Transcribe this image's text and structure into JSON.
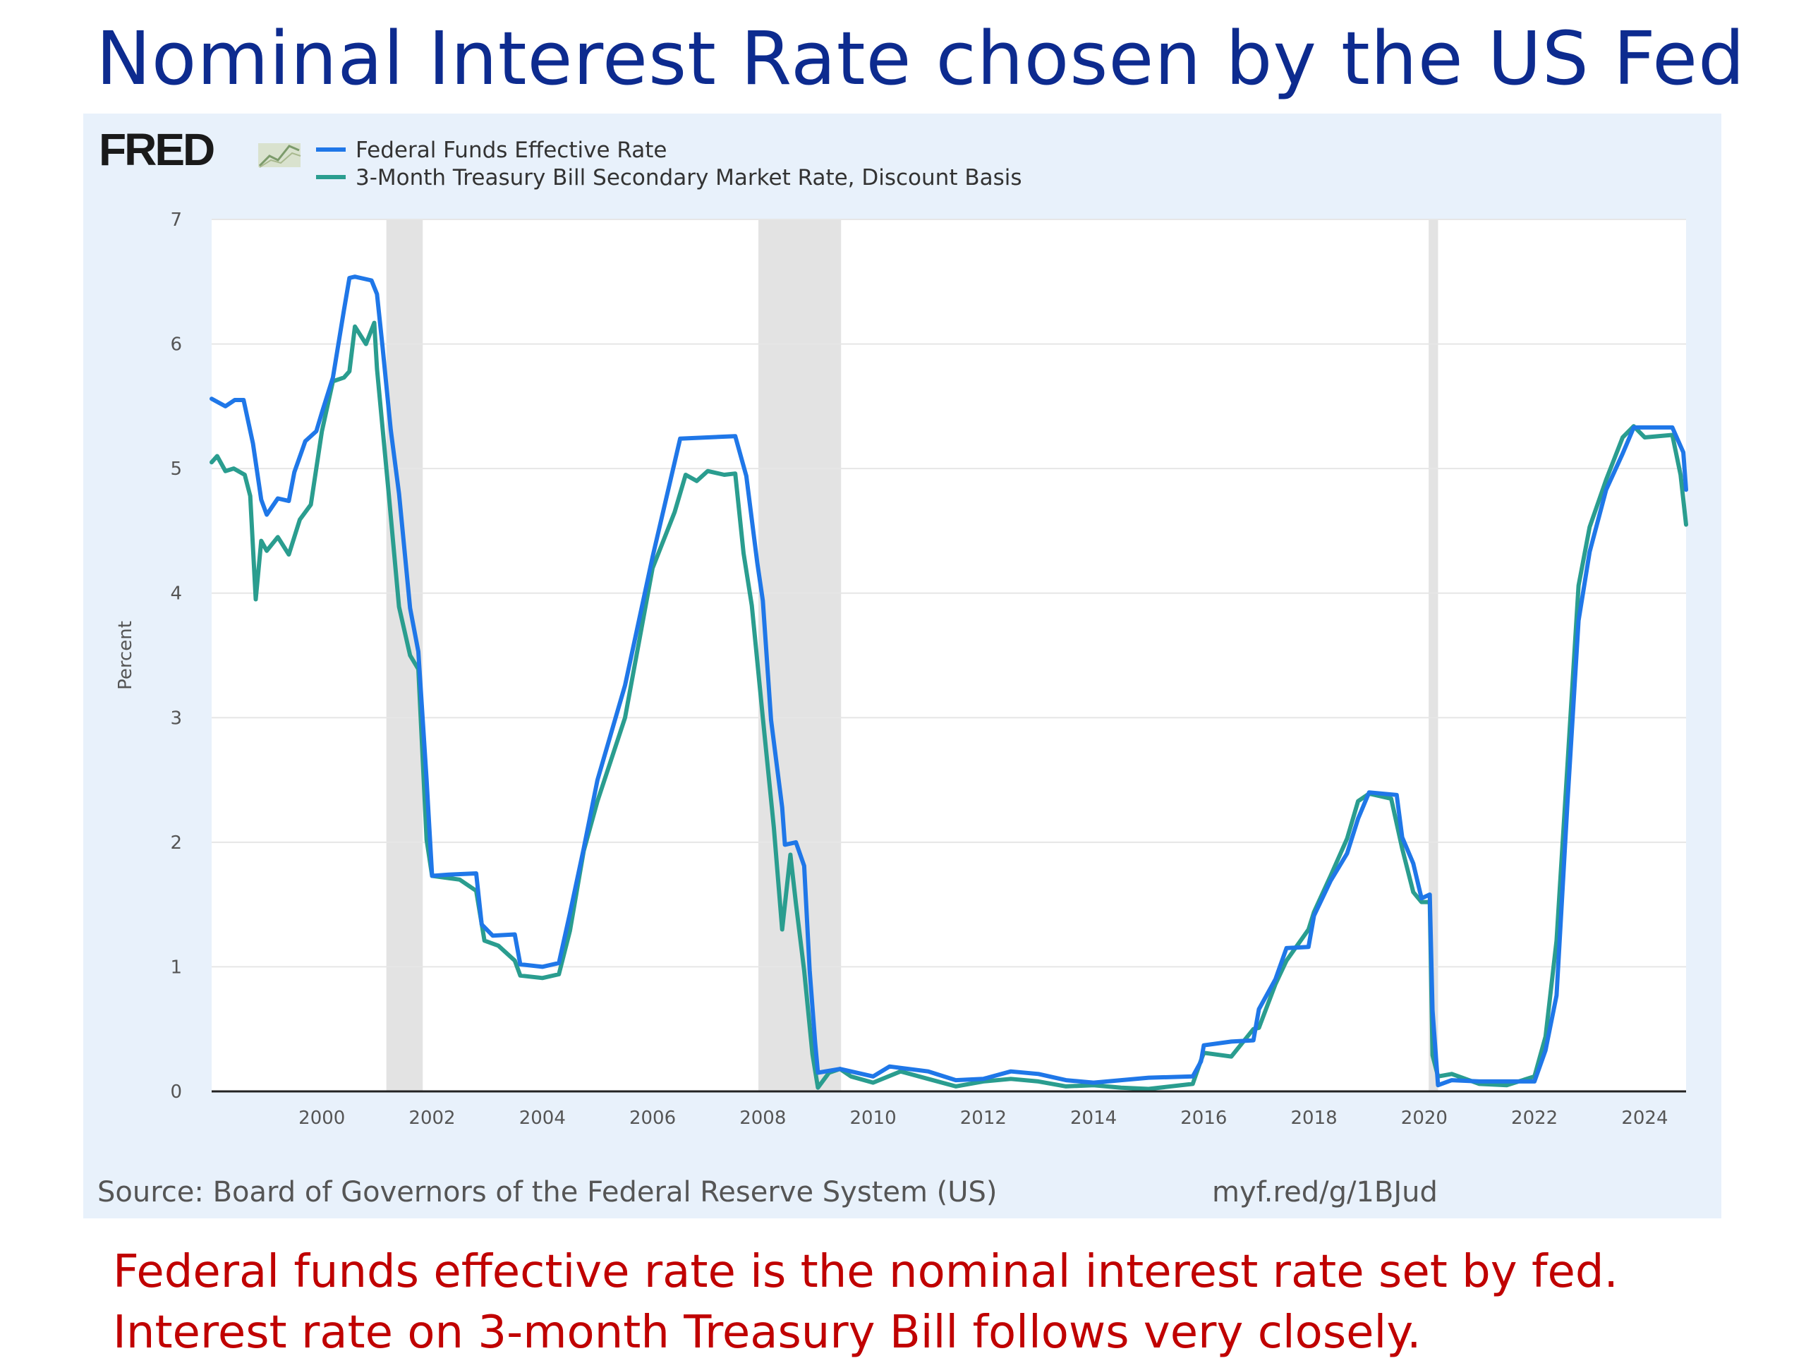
{
  "slide": {
    "title": "Nominal Interest Rate chosen by the US Fed",
    "caption": "Federal funds effective rate is the nominal interest rate set by fed. Interest rate on 3-month Treasury Bill follows very closely."
  },
  "fred": {
    "logo_text": "FRED",
    "source": "Source: Board of Governors of the Federal Reserve System (US)",
    "short_url": "myf.red/g/1BJud"
  },
  "chart_data": {
    "type": "line",
    "title": "",
    "xlabel": "",
    "ylabel": "Percent",
    "xlim": [
      1998.0,
      2024.75
    ],
    "ylim": [
      0,
      7
    ],
    "x_ticks": [
      2000,
      2002,
      2004,
      2006,
      2008,
      2010,
      2012,
      2014,
      2016,
      2018,
      2020,
      2022,
      2024
    ],
    "y_ticks": [
      0,
      1,
      2,
      3,
      4,
      5,
      6,
      7
    ],
    "grid": true,
    "legend_position": "top-left",
    "recessions": [
      [
        2001.17,
        2001.83
      ],
      [
        2007.92,
        2009.42
      ],
      [
        2020.08,
        2020.25
      ]
    ],
    "series": [
      {
        "name": "Federal Funds Effective Rate",
        "color": "#1f77e8",
        "points": [
          [
            1998.0,
            5.56
          ],
          [
            1998.25,
            5.5
          ],
          [
            1998.42,
            5.55
          ],
          [
            1998.58,
            5.55
          ],
          [
            1998.75,
            5.2
          ],
          [
            1998.9,
            4.75
          ],
          [
            1999.0,
            4.63
          ],
          [
            1999.2,
            4.76
          ],
          [
            1999.4,
            4.74
          ],
          [
            1999.5,
            4.97
          ],
          [
            1999.7,
            5.22
          ],
          [
            1999.9,
            5.3
          ],
          [
            2000.0,
            5.45
          ],
          [
            2000.2,
            5.73
          ],
          [
            2000.4,
            6.27
          ],
          [
            2000.5,
            6.53
          ],
          [
            2000.6,
            6.54
          ],
          [
            2000.9,
            6.51
          ],
          [
            2001.0,
            6.4
          ],
          [
            2001.1,
            5.98
          ],
          [
            2001.25,
            5.31
          ],
          [
            2001.4,
            4.8
          ],
          [
            2001.6,
            3.88
          ],
          [
            2001.75,
            3.53
          ],
          [
            2001.9,
            2.5
          ],
          [
            2002.0,
            1.73
          ],
          [
            2002.3,
            1.74
          ],
          [
            2002.8,
            1.75
          ],
          [
            2002.9,
            1.34
          ],
          [
            2003.1,
            1.25
          ],
          [
            2003.5,
            1.26
          ],
          [
            2003.6,
            1.02
          ],
          [
            2004.0,
            1.0
          ],
          [
            2004.3,
            1.03
          ],
          [
            2004.5,
            1.43
          ],
          [
            2004.75,
            1.95
          ],
          [
            2005.0,
            2.5
          ],
          [
            2005.5,
            3.26
          ],
          [
            2006.0,
            4.29
          ],
          [
            2006.5,
            5.24
          ],
          [
            2007.0,
            5.25
          ],
          [
            2007.5,
            5.26
          ],
          [
            2007.7,
            4.94
          ],
          [
            2007.9,
            4.24
          ],
          [
            2008.0,
            3.94
          ],
          [
            2008.15,
            2.98
          ],
          [
            2008.35,
            2.28
          ],
          [
            2008.4,
            1.98
          ],
          [
            2008.6,
            2.0
          ],
          [
            2008.75,
            1.81
          ],
          [
            2008.85,
            0.97
          ],
          [
            2008.95,
            0.39
          ],
          [
            2009.0,
            0.15
          ],
          [
            2009.4,
            0.18
          ],
          [
            2009.6,
            0.16
          ],
          [
            2010.0,
            0.12
          ],
          [
            2010.3,
            0.2
          ],
          [
            2011.0,
            0.16
          ],
          [
            2011.5,
            0.09
          ],
          [
            2012.0,
            0.1
          ],
          [
            2012.5,
            0.16
          ],
          [
            2013.0,
            0.14
          ],
          [
            2013.5,
            0.09
          ],
          [
            2014.0,
            0.07
          ],
          [
            2014.5,
            0.09
          ],
          [
            2015.0,
            0.11
          ],
          [
            2015.8,
            0.12
          ],
          [
            2015.95,
            0.24
          ],
          [
            2016.0,
            0.37
          ],
          [
            2016.5,
            0.4
          ],
          [
            2016.9,
            0.41
          ],
          [
            2017.0,
            0.66
          ],
          [
            2017.3,
            0.9
          ],
          [
            2017.5,
            1.15
          ],
          [
            2017.9,
            1.16
          ],
          [
            2018.0,
            1.41
          ],
          [
            2018.3,
            1.69
          ],
          [
            2018.6,
            1.91
          ],
          [
            2018.8,
            2.19
          ],
          [
            2019.0,
            2.4
          ],
          [
            2019.5,
            2.38
          ],
          [
            2019.6,
            2.04
          ],
          [
            2019.8,
            1.83
          ],
          [
            2019.95,
            1.55
          ],
          [
            2020.1,
            1.58
          ],
          [
            2020.15,
            0.65
          ],
          [
            2020.25,
            0.05
          ],
          [
            2020.5,
            0.09
          ],
          [
            2021.0,
            0.08
          ],
          [
            2021.5,
            0.08
          ],
          [
            2022.0,
            0.08
          ],
          [
            2022.2,
            0.33
          ],
          [
            2022.4,
            0.77
          ],
          [
            2022.6,
            2.33
          ],
          [
            2022.8,
            3.78
          ],
          [
            2023.0,
            4.33
          ],
          [
            2023.3,
            4.83
          ],
          [
            2023.6,
            5.12
          ],
          [
            2023.8,
            5.33
          ],
          [
            2024.5,
            5.33
          ],
          [
            2024.7,
            5.13
          ],
          [
            2024.75,
            4.83
          ]
        ]
      },
      {
        "name": "3-Month Treasury Bill Secondary Market Rate, Discount Basis",
        "color": "#2a9d8f",
        "points": [
          [
            1998.0,
            5.05
          ],
          [
            1998.1,
            5.1
          ],
          [
            1998.25,
            4.98
          ],
          [
            1998.4,
            5.0
          ],
          [
            1998.6,
            4.95
          ],
          [
            1998.7,
            4.78
          ],
          [
            1998.8,
            3.95
          ],
          [
            1998.9,
            4.42
          ],
          [
            1999.0,
            4.34
          ],
          [
            1999.2,
            4.45
          ],
          [
            1999.4,
            4.31
          ],
          [
            1999.6,
            4.59
          ],
          [
            1999.8,
            4.71
          ],
          [
            2000.0,
            5.3
          ],
          [
            2000.2,
            5.7
          ],
          [
            2000.4,
            5.73
          ],
          [
            2000.5,
            5.78
          ],
          [
            2000.6,
            6.14
          ],
          [
            2000.8,
            6.0
          ],
          [
            2000.95,
            6.17
          ],
          [
            2001.0,
            5.8
          ],
          [
            2001.2,
            4.86
          ],
          [
            2001.4,
            3.89
          ],
          [
            2001.6,
            3.5
          ],
          [
            2001.75,
            3.39
          ],
          [
            2001.9,
            2.02
          ],
          [
            2002.0,
            1.73
          ],
          [
            2002.5,
            1.7
          ],
          [
            2002.8,
            1.61
          ],
          [
            2002.95,
            1.21
          ],
          [
            2003.2,
            1.17
          ],
          [
            2003.5,
            1.05
          ],
          [
            2003.6,
            0.93
          ],
          [
            2004.0,
            0.91
          ],
          [
            2004.3,
            0.94
          ],
          [
            2004.5,
            1.29
          ],
          [
            2004.75,
            1.93
          ],
          [
            2005.0,
            2.33
          ],
          [
            2005.5,
            3.0
          ],
          [
            2006.0,
            4.2
          ],
          [
            2006.4,
            4.65
          ],
          [
            2006.6,
            4.95
          ],
          [
            2006.8,
            4.9
          ],
          [
            2007.0,
            4.98
          ],
          [
            2007.3,
            4.95
          ],
          [
            2007.5,
            4.96
          ],
          [
            2007.65,
            4.32
          ],
          [
            2007.8,
            3.9
          ],
          [
            2008.0,
            3.0
          ],
          [
            2008.2,
            2.12
          ],
          [
            2008.35,
            1.3
          ],
          [
            2008.5,
            1.9
          ],
          [
            2008.6,
            1.51
          ],
          [
            2008.75,
            0.97
          ],
          [
            2008.9,
            0.3
          ],
          [
            2009.0,
            0.03
          ],
          [
            2009.2,
            0.15
          ],
          [
            2009.4,
            0.18
          ],
          [
            2009.6,
            0.12
          ],
          [
            2010.0,
            0.07
          ],
          [
            2010.5,
            0.16
          ],
          [
            2011.0,
            0.1
          ],
          [
            2011.5,
            0.04
          ],
          [
            2012.0,
            0.08
          ],
          [
            2012.5,
            0.1
          ],
          [
            2013.0,
            0.08
          ],
          [
            2013.5,
            0.04
          ],
          [
            2014.0,
            0.05
          ],
          [
            2014.5,
            0.03
          ],
          [
            2015.0,
            0.02
          ],
          [
            2015.8,
            0.06
          ],
          [
            2015.95,
            0.25
          ],
          [
            2016.0,
            0.31
          ],
          [
            2016.5,
            0.28
          ],
          [
            2016.9,
            0.5
          ],
          [
            2017.0,
            0.51
          ],
          [
            2017.3,
            0.86
          ],
          [
            2017.5,
            1.05
          ],
          [
            2017.9,
            1.3
          ],
          [
            2018.0,
            1.44
          ],
          [
            2018.3,
            1.73
          ],
          [
            2018.6,
            2.03
          ],
          [
            2018.8,
            2.33
          ],
          [
            2019.0,
            2.39
          ],
          [
            2019.4,
            2.35
          ],
          [
            2019.6,
            1.95
          ],
          [
            2019.8,
            1.6
          ],
          [
            2019.95,
            1.52
          ],
          [
            2020.1,
            1.52
          ],
          [
            2020.15,
            0.29
          ],
          [
            2020.25,
            0.12
          ],
          [
            2020.5,
            0.14
          ],
          [
            2021.0,
            0.06
          ],
          [
            2021.5,
            0.05
          ],
          [
            2022.0,
            0.12
          ],
          [
            2022.2,
            0.44
          ],
          [
            2022.4,
            1.21
          ],
          [
            2022.6,
            2.63
          ],
          [
            2022.8,
            4.06
          ],
          [
            2023.0,
            4.53
          ],
          [
            2023.3,
            4.91
          ],
          [
            2023.6,
            5.25
          ],
          [
            2023.8,
            5.34
          ],
          [
            2024.0,
            5.25
          ],
          [
            2024.5,
            5.27
          ],
          [
            2024.65,
            4.95
          ],
          [
            2024.75,
            4.55
          ]
        ]
      }
    ]
  }
}
